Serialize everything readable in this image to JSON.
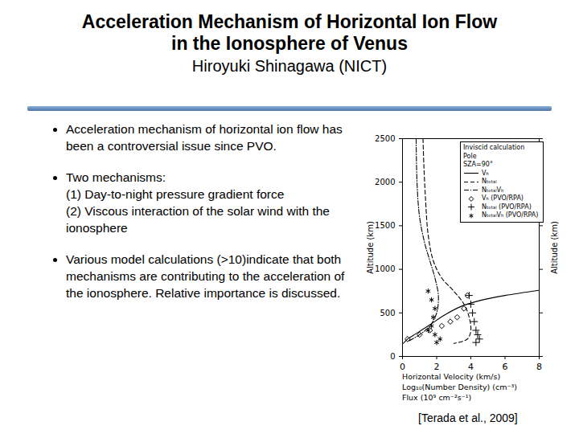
{
  "header": {
    "title": [
      "Acceleration Mechanism of Horizontal Ion Flow",
      "in the Ionosphere of Venus"
    ],
    "subtitle": "Hiroyuki Shinagawa (NICT)"
  },
  "bullets": [
    [
      "Acceleration mechanism of horizontal ion flow has been a controversial issue since PVO."
    ],
    [
      "Two mechanisms:",
      "(1) Day-to-night pressure gradient force",
      "(2) Viscous interaction of the solar wind with the ionosphere"
    ],
    [
      "Various model calculations (>10)indicate that both mechanisms are contributing to the acceleration of the ionosphere. Relative importance is discussed."
    ]
  ],
  "credit": "[Terada et al., 2009]",
  "chart_data": {
    "type": "line",
    "annotations": [
      "Inviscid calculation",
      "Pole",
      "SZA=90°"
    ],
    "xlabel": [
      "Horizontal Velocity (km/s)",
      "Log₁₀(Number Density) (cm⁻³)",
      "Flux (10⁹ cm⁻²s⁻¹)"
    ],
    "ylabel": "Altitude (km)",
    "ylabel_right": "Altitude (km)",
    "xlim": [
      0,
      8
    ],
    "xticks": [
      0,
      2,
      4,
      6,
      8
    ],
    "ylim": [
      0,
      2500
    ],
    "yticks": [
      0,
      500,
      1000,
      1500,
      2000,
      2500
    ],
    "legend": "top-right",
    "series": [
      {
        "name": "Vₕ",
        "type": "line",
        "line_style": "solid",
        "color": "#000000",
        "x": [
          0.05,
          0.3,
          0.7,
          1.5,
          2.5,
          3.5,
          4.5,
          6.0,
          8.0
        ],
        "y": [
          150,
          200,
          250,
          350,
          480,
          580,
          640,
          700,
          760
        ]
      },
      {
        "name": "Nₜₒₜₐₗ",
        "type": "line",
        "line_style": "dashed",
        "color": "#000000",
        "x": [
          1.2,
          1.25,
          1.35,
          1.5,
          1.8,
          2.3,
          3.0,
          3.6,
          3.9,
          4.0,
          3.8,
          3.0
        ],
        "y": [
          2500,
          2200,
          1800,
          1400,
          1100,
          900,
          750,
          600,
          450,
          300,
          200,
          150
        ]
      },
      {
        "name": "NₜₒₜₐₗVₕ",
        "type": "line",
        "line_style": "dashdot",
        "color": "#000000",
        "x": [
          0.8,
          0.85,
          1.0,
          1.3,
          1.6,
          1.9,
          2.1,
          2.0,
          1.6,
          1.0,
          0.4
        ],
        "y": [
          2500,
          2000,
          1600,
          1300,
          1100,
          900,
          700,
          500,
          350,
          250,
          180
        ]
      },
      {
        "name": "Vₕ (PVO/RPA)",
        "type": "scatter",
        "marker": "diamond",
        "color": "#000000",
        "x": [
          0.3,
          1.0,
          1.6,
          2.3,
          2.8,
          3.2,
          3.6,
          3.8
        ],
        "y": [
          200,
          250,
          300,
          350,
          400,
          450,
          550,
          700
        ]
      },
      {
        "name": "Nₜₒₜₐₗ (PVO/RPA)",
        "type": "scatter",
        "marker": "plus",
        "color": "#000000",
        "x": [
          3.9,
          4.0,
          4.1,
          4.2,
          4.3,
          4.4,
          4.5,
          4.3
        ],
        "y": [
          700,
          600,
          500,
          400,
          300,
          250,
          200,
          160
        ]
      },
      {
        "name": "NₜₒₜₐₗVₕ (PVO/RPA)",
        "type": "scatter",
        "marker": "asterisk",
        "color": "#000000",
        "x": [
          1.5,
          1.7,
          1.9,
          1.8,
          1.7,
          1.5,
          1.9,
          2.2,
          2.0
        ],
        "y": [
          750,
          650,
          550,
          450,
          350,
          300,
          250,
          200,
          160
        ]
      }
    ]
  }
}
